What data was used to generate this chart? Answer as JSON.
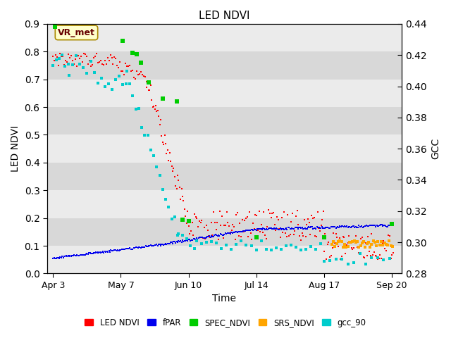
{
  "title": "LED NDVI",
  "xlabel": "Time",
  "ylabel_left": "LED NDVI",
  "ylabel_right": "GCC",
  "ylim_left": [
    0.0,
    0.9
  ],
  "ylim_right": [
    0.28,
    0.44
  ],
  "yticks_left": [
    0.0,
    0.1,
    0.2,
    0.3,
    0.4,
    0.5,
    0.6,
    0.7,
    0.8,
    0.9
  ],
  "yticks_right": [
    0.28,
    0.3,
    0.32,
    0.34,
    0.36,
    0.38,
    0.4,
    0.42,
    0.44
  ],
  "xtick_positions": [
    0,
    34,
    68,
    102,
    136,
    170
  ],
  "xtick_labels": [
    "Apr 3",
    "May 7",
    "Jun 10",
    "Jul 14",
    "Aug 17",
    "Sep 20"
  ],
  "xlim": [
    -3,
    175
  ],
  "annotation_text": "VR_met",
  "bg_color_light": "#ebebeb",
  "bg_color_dark": "#d8d8d8",
  "fig_bg": "#ffffff",
  "series_colors": {
    "LED_NDVI": "#ff0000",
    "fPAR": "#0000ee",
    "SPEC_NDVI": "#00cc00",
    "SRS_NDVI": "#ffa500",
    "gcc_90": "#00cccc"
  },
  "legend_labels": [
    "LED NDVI",
    "fPAR",
    "SPEC_NDVI",
    "SRS_NDVI",
    "gcc_90"
  ],
  "legend_colors": [
    "#ff0000",
    "#0000ee",
    "#00cc00",
    "#ffa500",
    "#00cccc"
  ]
}
